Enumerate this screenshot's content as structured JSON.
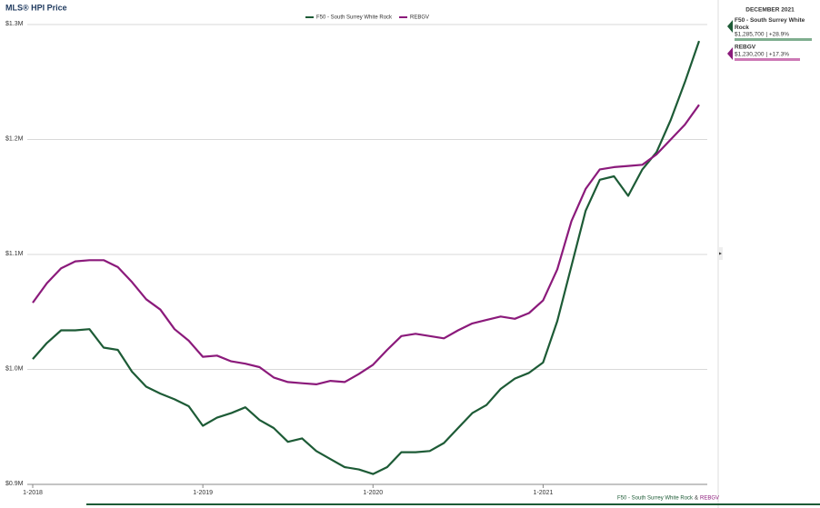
{
  "chart_data": {
    "type": "line",
    "title": "MLS® HPI Price",
    "categories": [
      "1-2018",
      null,
      null,
      null,
      null,
      null,
      null,
      null,
      null,
      null,
      null,
      null,
      "1-2019",
      null,
      null,
      null,
      null,
      null,
      null,
      null,
      null,
      null,
      null,
      null,
      "1-2020",
      null,
      null,
      null,
      null,
      null,
      null,
      null,
      null,
      null,
      null,
      null,
      "1-2021",
      null,
      null,
      null,
      null,
      null,
      null,
      null,
      null,
      null,
      null,
      null
    ],
    "series": [
      {
        "name": "F50 - South Surrey White Rock",
        "color": "#1d5b36",
        "values": [
          1009000,
          1023000,
          1034000,
          1034000,
          1035000,
          1019000,
          1017000,
          998000,
          985000,
          979000,
          974000,
          968000,
          951000,
          958000,
          962000,
          967000,
          956000,
          949000,
          937000,
          940000,
          929000,
          922000,
          915000,
          913000,
          909000,
          915000,
          928000,
          928000,
          929000,
          936000,
          949000,
          962000,
          969000,
          983000,
          992000,
          997000,
          1006000,
          1042000,
          1090000,
          1138000,
          1165000,
          1168000,
          1151000,
          1174000,
          1189000,
          1217000,
          1250000,
          1285700
        ]
      },
      {
        "name": "REBGV",
        "color": "#8b1a7b",
        "values": [
          1058000,
          1075000,
          1088000,
          1094000,
          1095000,
          1095000,
          1089000,
          1076000,
          1061000,
          1052000,
          1035000,
          1025000,
          1011000,
          1012000,
          1007000,
          1005000,
          1002000,
          993000,
          989000,
          988000,
          987000,
          990000,
          989000,
          996000,
          1004000,
          1017000,
          1029000,
          1031000,
          1029000,
          1027000,
          1034000,
          1040000,
          1043000,
          1046000,
          1044000,
          1049000,
          1060000,
          1087000,
          1129000,
          1157000,
          1174000,
          1176000,
          1177000,
          1178000,
          1187000,
          1200000,
          1213000,
          1230200
        ]
      }
    ],
    "ylim": [
      900000,
      1300000
    ],
    "yticks": [
      {
        "value": 900000,
        "label": "$0.9M"
      },
      {
        "value": 1000000,
        "label": "$1.0M"
      },
      {
        "value": 1100000,
        "label": "$1.1M"
      },
      {
        "value": 1200000,
        "label": "$1.2M"
      },
      {
        "value": 1300000,
        "label": "$1.3M"
      }
    ],
    "grid": true,
    "legend": "top",
    "panel": {
      "title": "DECEMBER 2021",
      "entries": [
        {
          "label": "$1,285,700 | +28.9%",
          "bar_color": "#7fae8f"
        },
        {
          "label": "$1,230,200 | +17.3%",
          "bar_color": "#cc79b5"
        }
      ]
    },
    "footer_joiner": "&"
  }
}
